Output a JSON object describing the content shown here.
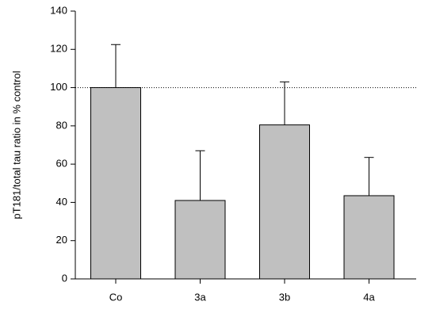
{
  "chart_data": {
    "type": "bar",
    "y_label": "pT181/total tau ratio in % control",
    "categories": [
      "Co",
      "3a",
      "3b",
      "4a"
    ],
    "values": [
      100,
      41,
      80.5,
      43.5
    ],
    "errors": [
      22.5,
      26,
      22.5,
      20
    ],
    "color": "#c0c0c0",
    "reference_line": 100,
    "ylim": [
      0,
      140
    ],
    "yticks": [
      0,
      20,
      40,
      60,
      80,
      100,
      120,
      140
    ]
  }
}
